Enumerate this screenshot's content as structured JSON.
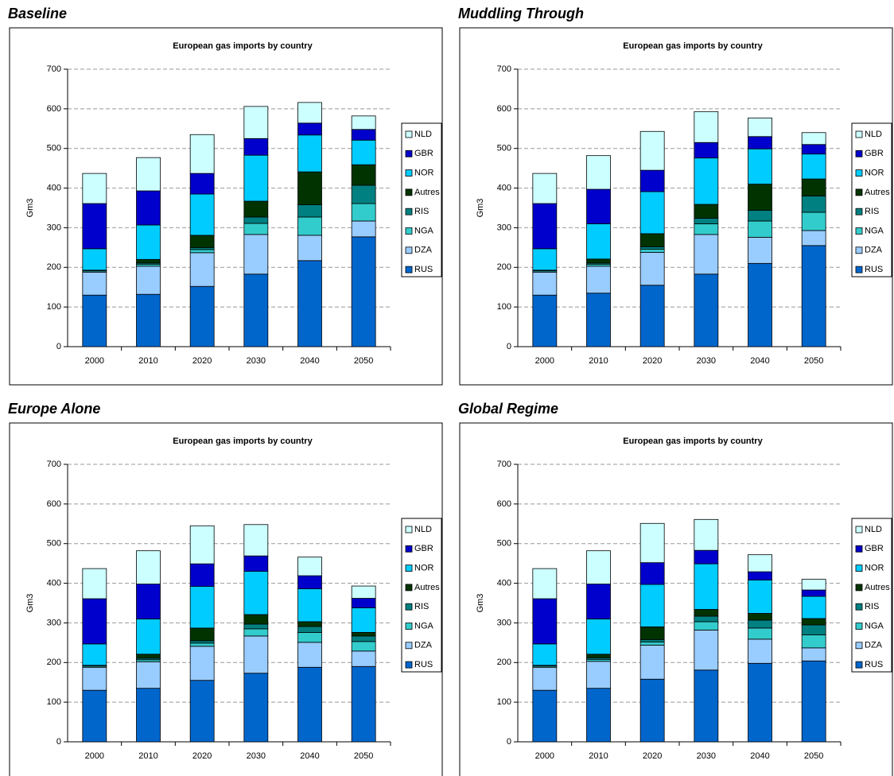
{
  "chart_data": [
    {
      "type": "bar",
      "stacked": true,
      "heading": "Baseline",
      "title": "European gas imports by country",
      "ylabel": "Gm3",
      "categories": [
        "2000",
        "2010",
        "2020",
        "2030",
        "2040",
        "2050"
      ],
      "series": [
        {
          "name": "RUS",
          "color": "#0066cc",
          "values": [
            130,
            132,
            152,
            183,
            217,
            277
          ]
        },
        {
          "name": "DZA",
          "color": "#99ccff",
          "values": [
            58,
            71,
            85,
            100,
            64,
            40
          ]
        },
        {
          "name": "NGA",
          "color": "#33cccc",
          "values": [
            3,
            5,
            8,
            28,
            46,
            44
          ]
        },
        {
          "name": "RIS",
          "color": "#008080",
          "values": [
            2,
            3,
            5,
            16,
            31,
            46
          ]
        },
        {
          "name": "Autres",
          "color": "#003300",
          "values": [
            0,
            9,
            31,
            40,
            83,
            52
          ]
        },
        {
          "name": "NOR",
          "color": "#00ccff",
          "values": [
            54,
            87,
            104,
            116,
            93,
            62
          ]
        },
        {
          "name": "GBR",
          "color": "#0000cc",
          "values": [
            114,
            86,
            52,
            42,
            30,
            27
          ]
        },
        {
          "name": "NLD",
          "color": "#ccffff",
          "values": [
            76,
            84,
            98,
            81,
            52,
            34
          ]
        }
      ],
      "ylim": [
        0,
        700
      ],
      "yticks": [
        0,
        100,
        200,
        300,
        400,
        500,
        600,
        700
      ],
      "grid": true,
      "legend": "right"
    },
    {
      "type": "bar",
      "stacked": true,
      "heading": "Muddling Through",
      "title": "European gas imports by country",
      "ylabel": "Gm3",
      "categories": [
        "2000",
        "2010",
        "2020",
        "2030",
        "2040",
        "2050"
      ],
      "series": [
        {
          "name": "RUS",
          "color": "#0066cc",
          "values": [
            130,
            135,
            155,
            183,
            210,
            255
          ]
        },
        {
          "name": "DZA",
          "color": "#99ccff",
          "values": [
            58,
            68,
            83,
            100,
            66,
            38
          ]
        },
        {
          "name": "NGA",
          "color": "#33cccc",
          "values": [
            3,
            5,
            8,
            27,
            41,
            46
          ]
        },
        {
          "name": "RIS",
          "color": "#008080",
          "values": [
            2,
            3,
            6,
            14,
            27,
            41
          ]
        },
        {
          "name": "Autres",
          "color": "#003300",
          "values": [
            0,
            10,
            33,
            35,
            66,
            43
          ]
        },
        {
          "name": "NOR",
          "color": "#00ccff",
          "values": [
            54,
            89,
            106,
            117,
            89,
            63
          ]
        },
        {
          "name": "GBR",
          "color": "#0000cc",
          "values": [
            114,
            87,
            54,
            39,
            31,
            24
          ]
        },
        {
          "name": "NLD",
          "color": "#ccffff",
          "values": [
            76,
            85,
            98,
            78,
            47,
            30
          ]
        }
      ],
      "ylim": [
        0,
        700
      ],
      "yticks": [
        0,
        100,
        200,
        300,
        400,
        500,
        600,
        700
      ],
      "grid": true,
      "legend": "right"
    },
    {
      "type": "bar",
      "stacked": true,
      "heading": "Europe Alone",
      "title": "European gas imports by country",
      "ylabel": "Gm3",
      "categories": [
        "2000",
        "2010",
        "2020",
        "2030",
        "2040",
        "2050"
      ],
      "series": [
        {
          "name": "RUS",
          "color": "#0066cc",
          "values": [
            130,
            135,
            155,
            173,
            188,
            190
          ]
        },
        {
          "name": "DZA",
          "color": "#99ccff",
          "values": [
            58,
            67,
            86,
            94,
            63,
            39
          ]
        },
        {
          "name": "NGA",
          "color": "#33cccc",
          "values": [
            3,
            5,
            8,
            18,
            25,
            24
          ]
        },
        {
          "name": "RIS",
          "color": "#008080",
          "values": [
            2,
            4,
            6,
            12,
            15,
            14
          ]
        },
        {
          "name": "Autres",
          "color": "#003300",
          "values": [
            0,
            10,
            32,
            24,
            12,
            9
          ]
        },
        {
          "name": "NOR",
          "color": "#00ccff",
          "values": [
            54,
            89,
            105,
            109,
            83,
            62
          ]
        },
        {
          "name": "GBR",
          "color": "#0000cc",
          "values": [
            114,
            88,
            57,
            39,
            33,
            24
          ]
        },
        {
          "name": "NLD",
          "color": "#ccffff",
          "values": [
            76,
            84,
            96,
            79,
            47,
            31
          ]
        }
      ],
      "ylim": [
        0,
        700
      ],
      "yticks": [
        0,
        100,
        200,
        300,
        400,
        500,
        600,
        700
      ],
      "grid": true,
      "legend": "right"
    },
    {
      "type": "bar",
      "stacked": true,
      "heading": "Global Regime",
      "title": "European gas imports by country",
      "ylabel": "Gm3",
      "categories": [
        "2000",
        "2010",
        "2020",
        "2030",
        "2040",
        "2050"
      ],
      "series": [
        {
          "name": "RUS",
          "color": "#0066cc",
          "values": [
            130,
            135,
            158,
            181,
            198,
            204
          ]
        },
        {
          "name": "DZA",
          "color": "#99ccff",
          "values": [
            58,
            68,
            86,
            101,
            61,
            33
          ]
        },
        {
          "name": "NGA",
          "color": "#33cccc",
          "values": [
            3,
            5,
            8,
            21,
            28,
            33
          ]
        },
        {
          "name": "RIS",
          "color": "#008080",
          "values": [
            2,
            4,
            6,
            14,
            20,
            25
          ]
        },
        {
          "name": "Autres",
          "color": "#003300",
          "values": [
            0,
            9,
            32,
            17,
            17,
            16
          ]
        },
        {
          "name": "NOR",
          "color": "#00ccff",
          "values": [
            54,
            89,
            107,
            115,
            84,
            56
          ]
        },
        {
          "name": "GBR",
          "color": "#0000cc",
          "values": [
            114,
            88,
            55,
            34,
            21,
            16
          ]
        },
        {
          "name": "NLD",
          "color": "#ccffff",
          "values": [
            76,
            84,
            99,
            78,
            43,
            27
          ]
        }
      ],
      "ylim": [
        0,
        700
      ],
      "yticks": [
        0,
        100,
        200,
        300,
        400,
        500,
        600,
        700
      ],
      "grid": true,
      "legend": "right"
    }
  ]
}
